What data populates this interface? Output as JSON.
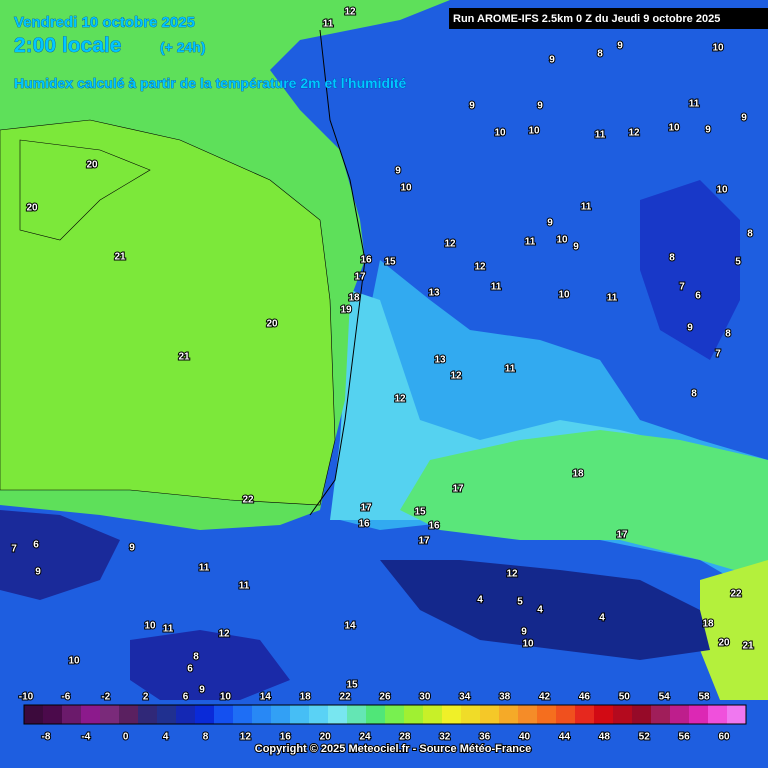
{
  "header": {
    "date": "Vendredi 10 octobre 2025",
    "time": "2:00 locale",
    "lead": "(+ 24h)",
    "subtitle": "Humidex calculé à partir de la température 2m et l'humidité",
    "run": "Run AROME-IFS 2.5km 0 Z du Jeudi 9 octobre 2025"
  },
  "contour_labels": [
    12,
    11,
    8,
    9,
    10,
    9,
    9,
    9,
    10,
    10,
    11,
    12,
    10,
    9,
    11,
    9,
    9,
    10,
    10,
    11,
    9,
    10,
    9,
    11,
    12,
    12,
    11,
    13,
    10,
    11,
    8,
    8,
    5,
    7,
    6,
    9,
    8,
    7,
    8,
    13,
    12,
    11,
    12,
    16,
    15,
    17,
    18,
    19,
    20,
    21,
    21,
    20,
    20,
    22,
    18,
    17,
    17,
    16,
    15,
    16,
    17,
    17,
    22,
    21,
    20,
    18,
    12,
    4,
    5,
    4,
    4,
    9,
    10,
    7,
    6,
    9,
    9,
    11,
    11,
    10,
    11,
    12,
    10,
    8,
    6,
    9,
    14,
    15
  ],
  "colorbar": {
    "colors": [
      "#3c0a3c",
      "#4b0a4b",
      "#6b1a6b",
      "#8c1a8c",
      "#7a2a7a",
      "#5a2060",
      "#302878",
      "#203090",
      "#1428b4",
      "#0a2ad8",
      "#1450f0",
      "#1e6ef5",
      "#2888f5",
      "#32a0f5",
      "#46bef5",
      "#5ad2f5",
      "#78e6f0",
      "#64e6b4",
      "#50e678",
      "#78f050",
      "#a0f032",
      "#c8f028",
      "#f0f028",
      "#f0dc28",
      "#f5c828",
      "#f5aa28",
      "#f58c28",
      "#f56e1e",
      "#f0501e",
      "#e6281e",
      "#d20a14",
      "#b40a1e",
      "#960a28",
      "#a01e5a",
      "#be1e8c",
      "#dc28b4",
      "#f050dc",
      "#f078f0"
    ],
    "labels_top": [
      -10,
      -6,
      -2,
      2,
      6,
      10,
      14,
      18,
      22,
      26,
      30,
      34,
      38,
      42,
      46,
      50,
      54,
      58
    ],
    "labels_bottom": [
      -8,
      -4,
      0,
      4,
      8,
      12,
      16,
      20,
      24,
      28,
      32,
      36,
      40,
      44,
      48,
      52,
      56,
      60
    ]
  },
  "footer": "Copyright © 2025 Meteociel.fr - Source Météo-France"
}
